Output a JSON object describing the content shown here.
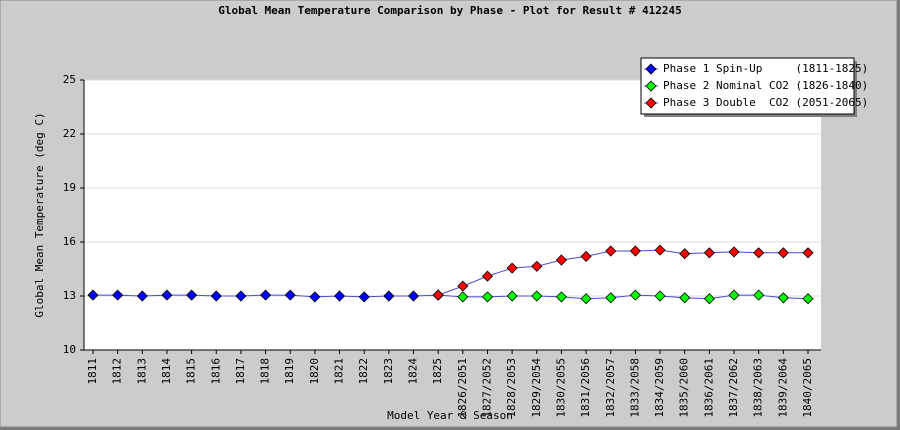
{
  "chart_data": {
    "type": "line",
    "title": "Global Mean Temperature Comparison by Phase - Plot for Result # 412245",
    "x_label": "Model Year & Season",
    "y_label": "Global Mean Temperature (deg C)",
    "categories": [
      "1811",
      "1812",
      "1813",
      "1814",
      "1815",
      "1816",
      "1817",
      "1818",
      "1819",
      "1820",
      "1821",
      "1822",
      "1823",
      "1824",
      "1825",
      "1826/2051",
      "1827/2052",
      "1828/2053",
      "1829/2054",
      "1830/2055",
      "1831/2056",
      "1832/2057",
      "1833/2058",
      "1834/2059",
      "1835/2060",
      "1836/2061",
      "1837/2062",
      "1838/2063",
      "1839/2064",
      "1840/2065"
    ],
    "line_color": "#4a4ad0",
    "series": [
      {
        "name": "Phase 1 Spin-Up     (1811-1825)",
        "color": "#0000ff",
        "values": [
          13.05,
          13.05,
          13.0,
          13.05,
          13.05,
          13.0,
          13.0,
          13.05,
          13.05,
          12.95,
          13.0,
          12.95,
          13.0,
          13.0,
          13.05,
          null,
          null,
          null,
          null,
          null,
          null,
          null,
          null,
          null,
          null,
          null,
          null,
          null,
          null,
          null
        ]
      },
      {
        "name": "Phase 2 Nominal CO2 (1826-1840)",
        "color": "#00ff00",
        "values": [
          null,
          null,
          null,
          null,
          null,
          null,
          null,
          null,
          null,
          null,
          null,
          null,
          null,
          null,
          13.05,
          12.95,
          12.95,
          13.0,
          13.0,
          12.95,
          12.85,
          12.9,
          13.05,
          13.0,
          12.9,
          12.85,
          13.05,
          13.05,
          12.9,
          12.85
        ]
      },
      {
        "name": "Phase 3 Double  CO2 (2051-2065)",
        "color": "#ff0000",
        "values": [
          null,
          null,
          null,
          null,
          null,
          null,
          null,
          null,
          null,
          null,
          null,
          null,
          null,
          null,
          13.05,
          13.55,
          14.1,
          14.55,
          14.65,
          15.0,
          15.2,
          15.5,
          15.5,
          15.55,
          15.35,
          15.4,
          15.45,
          15.4,
          15.4,
          15.4
        ]
      }
    ],
    "ylim": [
      10,
      25
    ],
    "yticks": [
      10,
      13,
      16,
      19,
      22,
      25
    ],
    "grid": true,
    "legend": "top-right"
  }
}
